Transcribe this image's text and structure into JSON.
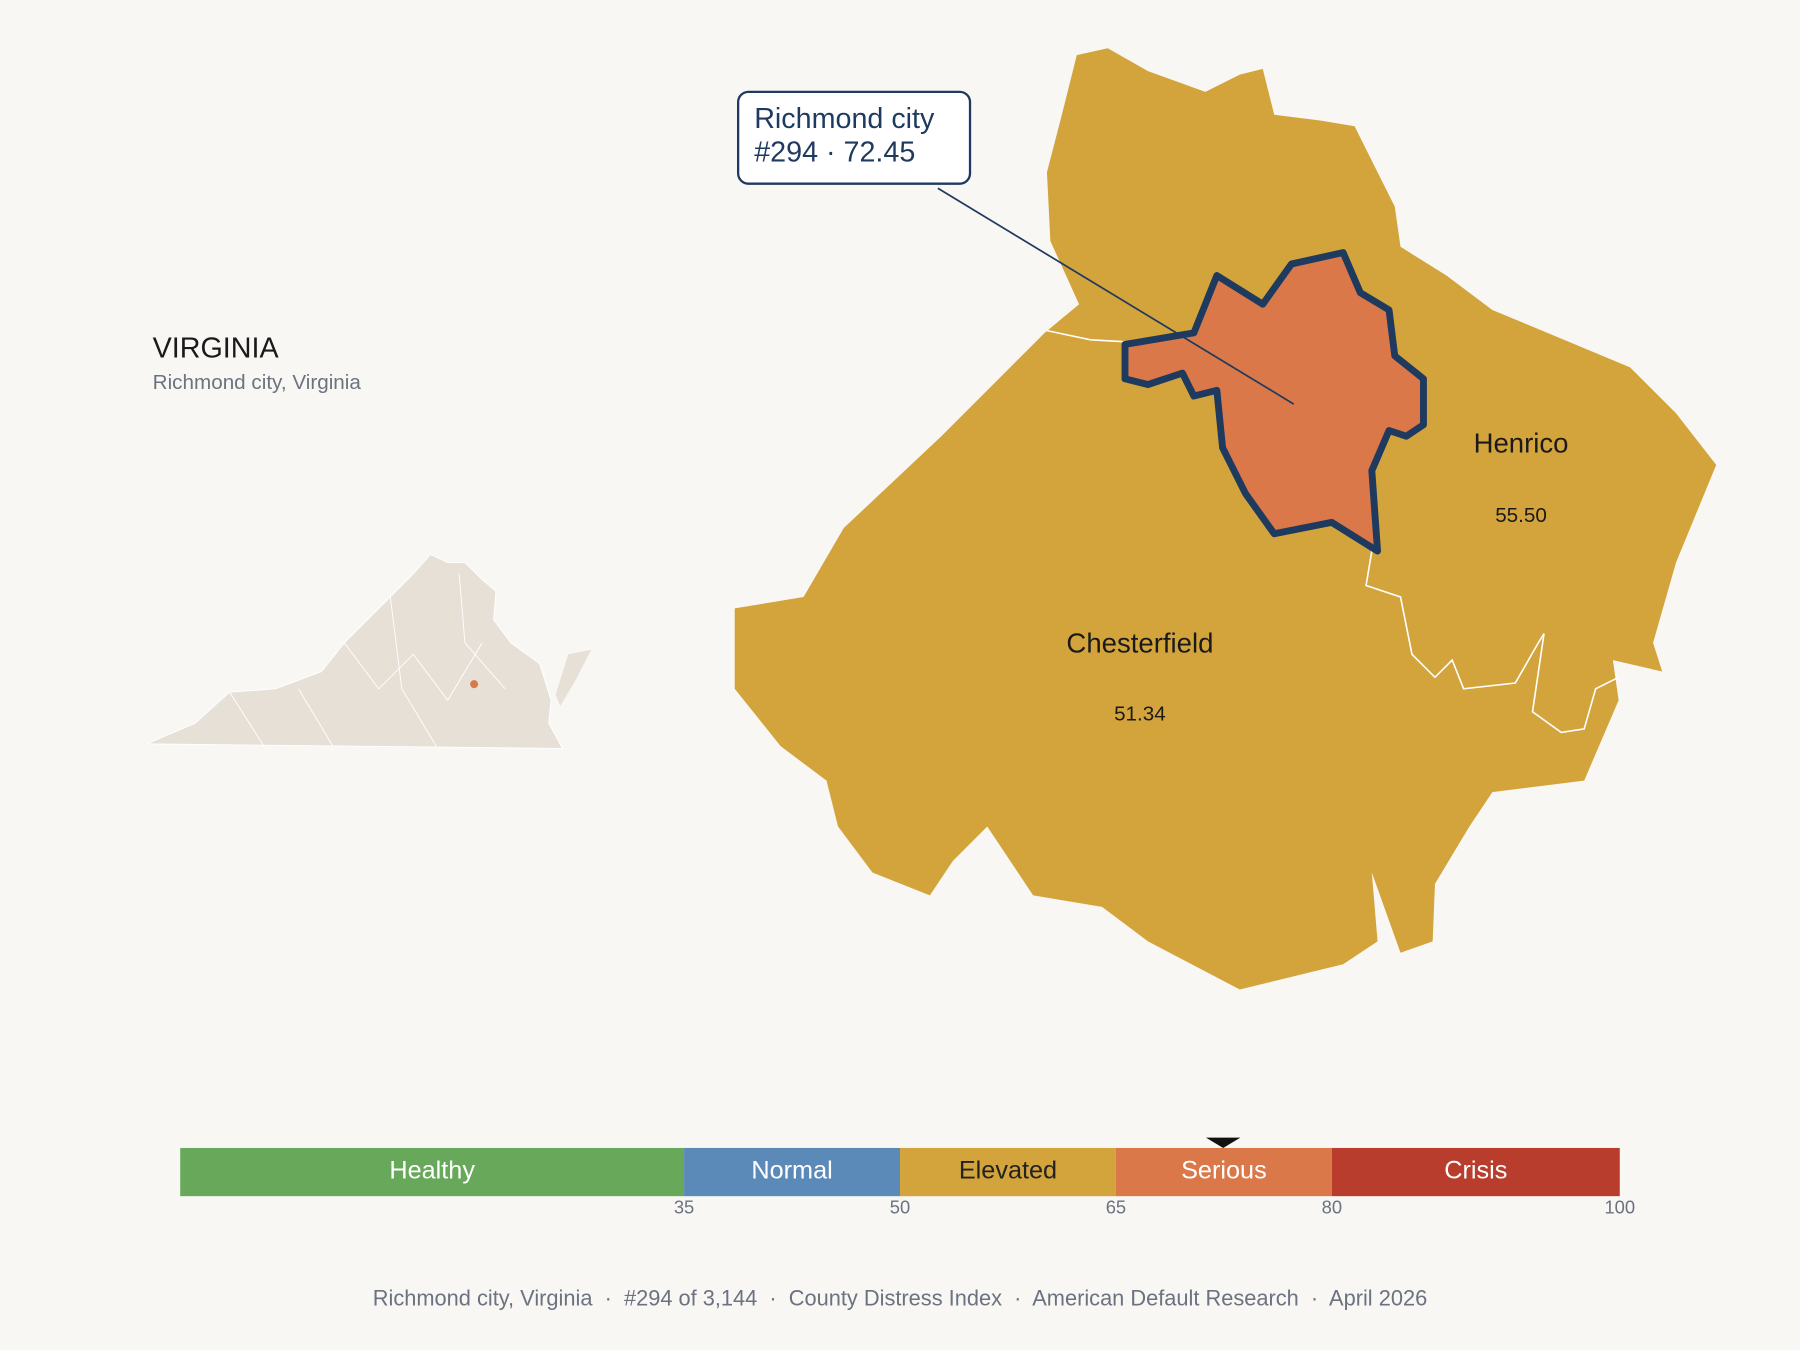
{
  "header": {
    "title": "VIRGINIA",
    "subtitle": "Richmond city, Virginia"
  },
  "callout": {
    "name": "Richmond city",
    "rank_score": "#294 · 72.45"
  },
  "counties": [
    {
      "name": "Henrico",
      "value": "55.50"
    },
    {
      "name": "Chesterfield",
      "value": "51.34"
    }
  ],
  "scale": {
    "xlim": [
      0,
      100
    ],
    "ticks": [
      35,
      50,
      65,
      80,
      100
    ],
    "marker": 72.45,
    "bands": [
      {
        "label": "Healthy",
        "color": "#67a85a",
        "text_color": "#ffffff"
      },
      {
        "label": "Normal",
        "color": "#5b8ab9",
        "text_color": "#ffffff"
      },
      {
        "label": "Elevated",
        "color": "#d3a43b",
        "text_color": "#222222"
      },
      {
        "label": "Serious",
        "color": "#db784a",
        "text_color": "#ffffff"
      },
      {
        "label": "Crisis",
        "color": "#b83d2c",
        "text_color": "#ffffff"
      }
    ]
  },
  "footer": "Richmond city, Virginia  ·  #294 of 3,144  ·  County Distress Index  ·  American Default Research  ·  April 2026"
}
